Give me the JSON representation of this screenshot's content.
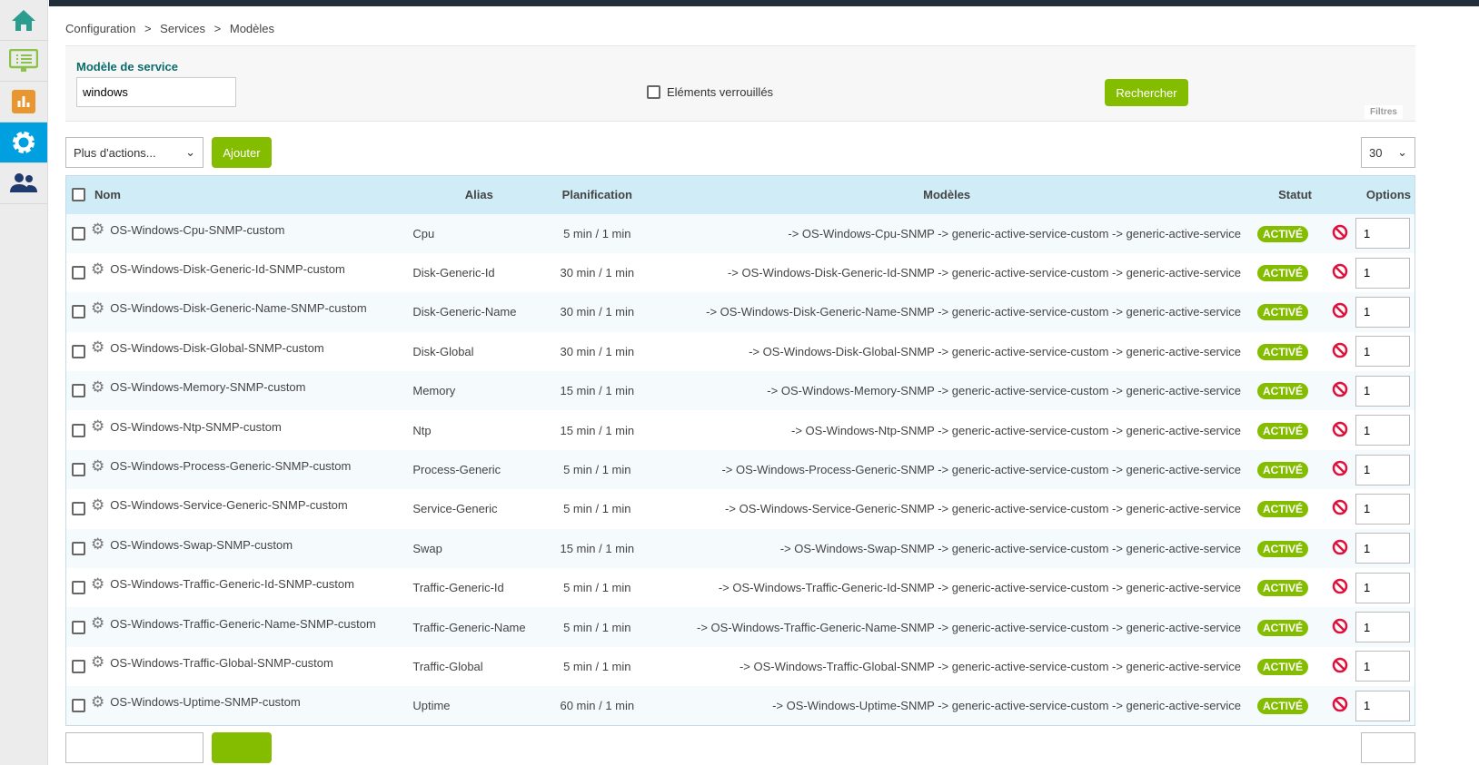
{
  "sidebar": {
    "items": [
      {
        "icon": "home-icon",
        "color": "#2a9d8f"
      },
      {
        "icon": "monitor-icon",
        "color": "#8bc34a"
      },
      {
        "icon": "chart-icon",
        "color": "#e8962f"
      },
      {
        "icon": "gear-icon",
        "color": "#ffffff",
        "active": true
      },
      {
        "icon": "users-icon",
        "color": "#1e3a6e"
      }
    ]
  },
  "breadcrumb": [
    "Configuration",
    ">",
    "Services",
    ">",
    "Modèles"
  ],
  "filters": {
    "label": "Modèle de service",
    "value": "windows",
    "locked_label": "Eléments verrouillés",
    "search_label": "Rechercher",
    "panel_label": "Filtres"
  },
  "toolbar": {
    "actions_label": "Plus d'actions...",
    "add_label": "Ajouter",
    "page_size": "30"
  },
  "table": {
    "headers": {
      "name": "Nom",
      "alias": "Alias",
      "schedule": "Planification",
      "templates": "Modèles",
      "status": "Statut",
      "options": "Options"
    },
    "rows": [
      {
        "name": "OS-Windows-Cpu-SNMP-custom",
        "alias": "Cpu",
        "schedule": "5 min / 1 min",
        "templates": "-> OS-Windows-Cpu-SNMP -> generic-active-service-custom -> generic-active-service",
        "status": "ACTIVÉ",
        "option": "1"
      },
      {
        "name": "OS-Windows-Disk-Generic-Id-SNMP-custom",
        "alias": "Disk-Generic-Id",
        "schedule": "30 min / 1 min",
        "templates": "-> OS-Windows-Disk-Generic-Id-SNMP -> generic-active-service-custom -> generic-active-service",
        "status": "ACTIVÉ",
        "option": "1"
      },
      {
        "name": "OS-Windows-Disk-Generic-Name-SNMP-custom",
        "alias": "Disk-Generic-Name",
        "schedule": "30 min / 1 min",
        "templates": "-> OS-Windows-Disk-Generic-Name-SNMP -> generic-active-service-custom -> generic-active-service",
        "status": "ACTIVÉ",
        "option": "1"
      },
      {
        "name": "OS-Windows-Disk-Global-SNMP-custom",
        "alias": "Disk-Global",
        "schedule": "30 min / 1 min",
        "templates": "-> OS-Windows-Disk-Global-SNMP -> generic-active-service-custom -> generic-active-service",
        "status": "ACTIVÉ",
        "option": "1"
      },
      {
        "name": "OS-Windows-Memory-SNMP-custom",
        "alias": "Memory",
        "schedule": "15 min / 1 min",
        "templates": "-> OS-Windows-Memory-SNMP -> generic-active-service-custom -> generic-active-service",
        "status": "ACTIVÉ",
        "option": "1"
      },
      {
        "name": "OS-Windows-Ntp-SNMP-custom",
        "alias": "Ntp",
        "schedule": "15 min / 1 min",
        "templates": "-> OS-Windows-Ntp-SNMP -> generic-active-service-custom -> generic-active-service",
        "status": "ACTIVÉ",
        "option": "1"
      },
      {
        "name": "OS-Windows-Process-Generic-SNMP-custom",
        "alias": "Process-Generic",
        "schedule": "5 min / 1 min",
        "templates": "-> OS-Windows-Process-Generic-SNMP -> generic-active-service-custom -> generic-active-service",
        "status": "ACTIVÉ",
        "option": "1"
      },
      {
        "name": "OS-Windows-Service-Generic-SNMP-custom",
        "alias": "Service-Generic",
        "schedule": "5 min / 1 min",
        "templates": "-> OS-Windows-Service-Generic-SNMP -> generic-active-service-custom -> generic-active-service",
        "status": "ACTIVÉ",
        "option": "1"
      },
      {
        "name": "OS-Windows-Swap-SNMP-custom",
        "alias": "Swap",
        "schedule": "15 min / 1 min",
        "templates": "-> OS-Windows-Swap-SNMP -> generic-active-service-custom -> generic-active-service",
        "status": "ACTIVÉ",
        "option": "1"
      },
      {
        "name": "OS-Windows-Traffic-Generic-Id-SNMP-custom",
        "alias": "Traffic-Generic-Id",
        "schedule": "5 min / 1 min",
        "templates": "-> OS-Windows-Traffic-Generic-Id-SNMP -> generic-active-service-custom -> generic-active-service",
        "status": "ACTIVÉ",
        "option": "1"
      },
      {
        "name": "OS-Windows-Traffic-Generic-Name-SNMP-custom",
        "alias": "Traffic-Generic-Name",
        "schedule": "5 min / 1 min",
        "templates": "-> OS-Windows-Traffic-Generic-Name-SNMP -> generic-active-service-custom -> generic-active-service",
        "status": "ACTIVÉ",
        "option": "1"
      },
      {
        "name": "OS-Windows-Traffic-Global-SNMP-custom",
        "alias": "Traffic-Global",
        "schedule": "5 min / 1 min",
        "templates": "-> OS-Windows-Traffic-Global-SNMP -> generic-active-service-custom -> generic-active-service",
        "status": "ACTIVÉ",
        "option": "1"
      },
      {
        "name": "OS-Windows-Uptime-SNMP-custom",
        "alias": "Uptime",
        "schedule": "60 min / 1 min",
        "templates": "-> OS-Windows-Uptime-SNMP -> generic-active-service-custom -> generic-active-service",
        "status": "ACTIVÉ",
        "option": "1"
      }
    ]
  }
}
